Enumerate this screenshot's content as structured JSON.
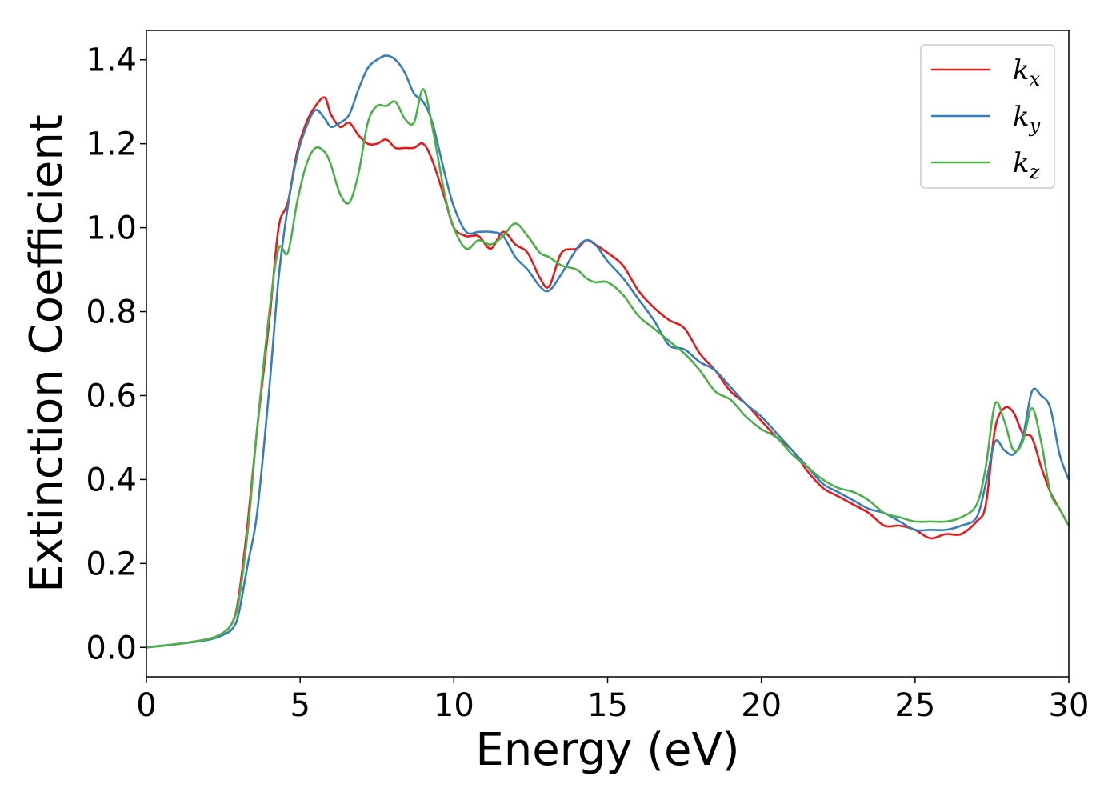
{
  "chart_data": {
    "type": "line",
    "title": "",
    "xlabel": "Energy (eV)",
    "ylabel": "Extinction Coefficient",
    "xlim": [
      0,
      30
    ],
    "ylim": [
      -0.07,
      1.47
    ],
    "xticks": [
      0,
      5,
      10,
      15,
      20,
      25,
      30
    ],
    "xtick_labels": [
      "0",
      "5",
      "10",
      "15",
      "20",
      "25",
      "30"
    ],
    "yticks": [
      0.0,
      0.2,
      0.4,
      0.6,
      0.8,
      1.0,
      1.2,
      1.4
    ],
    "ytick_labels": [
      "0.0",
      "0.2",
      "0.4",
      "0.6",
      "0.8",
      "1.0",
      "1.2",
      "1.4"
    ],
    "grid": false,
    "legend_position": "top-right",
    "series": [
      {
        "name": "k",
        "subscript": "x",
        "color": "#e41a1c",
        "x": [
          0,
          1,
          2,
          2.5,
          2.8,
          3.0,
          3.3,
          3.6,
          4.0,
          4.3,
          4.6,
          4.9,
          5.2,
          5.5,
          5.8,
          6.0,
          6.3,
          6.6,
          6.9,
          7.2,
          7.5,
          7.8,
          8.1,
          8.4,
          8.7,
          9.0,
          9.3,
          9.7,
          10.0,
          10.4,
          10.8,
          11.2,
          11.6,
          12.0,
          12.4,
          12.8,
          13.1,
          13.5,
          14.0,
          14.3,
          14.6,
          15.0,
          15.5,
          16.0,
          16.5,
          17.0,
          17.5,
          18.0,
          18.5,
          19.0,
          19.5,
          20.0,
          20.5,
          21.0,
          21.5,
          22.0,
          22.5,
          23.0,
          23.5,
          24.0,
          24.5,
          25.0,
          25.5,
          26.0,
          26.5,
          27.0,
          27.3,
          27.6,
          27.9,
          28.2,
          28.5,
          28.8,
          29.1,
          29.4,
          29.7,
          30.0
        ],
        "y": [
          0.0,
          0.008,
          0.02,
          0.035,
          0.06,
          0.12,
          0.3,
          0.52,
          0.78,
          1.0,
          1.06,
          1.18,
          1.25,
          1.29,
          1.31,
          1.27,
          1.24,
          1.25,
          1.22,
          1.2,
          1.2,
          1.21,
          1.19,
          1.19,
          1.19,
          1.2,
          1.16,
          1.07,
          1.0,
          0.98,
          0.98,
          0.95,
          0.99,
          0.96,
          0.94,
          0.88,
          0.86,
          0.94,
          0.95,
          0.97,
          0.96,
          0.94,
          0.91,
          0.85,
          0.81,
          0.78,
          0.76,
          0.7,
          0.66,
          0.61,
          0.58,
          0.54,
          0.5,
          0.47,
          0.42,
          0.38,
          0.36,
          0.34,
          0.32,
          0.29,
          0.29,
          0.28,
          0.26,
          0.27,
          0.27,
          0.3,
          0.34,
          0.52,
          0.57,
          0.56,
          0.51,
          0.5,
          0.43,
          0.37,
          0.33,
          0.29
        ]
      },
      {
        "name": "k",
        "subscript": "y",
        "color": "#377eb8",
        "x": [
          0,
          1,
          2,
          2.5,
          2.8,
          3.0,
          3.3,
          3.6,
          4.0,
          4.3,
          4.6,
          4.9,
          5.2,
          5.5,
          5.8,
          6.0,
          6.3,
          6.6,
          6.9,
          7.2,
          7.5,
          7.8,
          8.1,
          8.4,
          8.7,
          9.0,
          9.3,
          9.7,
          10.0,
          10.4,
          10.8,
          11.2,
          11.6,
          12.0,
          12.4,
          12.8,
          13.1,
          13.5,
          14.0,
          14.3,
          14.6,
          15.0,
          15.5,
          16.0,
          16.5,
          17.0,
          17.5,
          18.0,
          18.5,
          19.0,
          19.5,
          20.0,
          20.5,
          21.0,
          21.5,
          22.0,
          22.5,
          23.0,
          23.5,
          24.0,
          24.5,
          25.0,
          25.5,
          26.0,
          26.5,
          27.0,
          27.3,
          27.6,
          27.9,
          28.2,
          28.5,
          28.8,
          29.1,
          29.4,
          29.7,
          30.0
        ],
        "y": [
          0.0,
          0.008,
          0.018,
          0.03,
          0.045,
          0.08,
          0.2,
          0.32,
          0.62,
          0.88,
          1.05,
          1.17,
          1.24,
          1.28,
          1.26,
          1.24,
          1.25,
          1.27,
          1.33,
          1.38,
          1.4,
          1.41,
          1.4,
          1.37,
          1.32,
          1.3,
          1.25,
          1.13,
          1.05,
          0.99,
          0.99,
          0.99,
          0.98,
          0.93,
          0.9,
          0.86,
          0.85,
          0.89,
          0.95,
          0.97,
          0.96,
          0.92,
          0.88,
          0.83,
          0.78,
          0.72,
          0.71,
          0.68,
          0.66,
          0.62,
          0.58,
          0.55,
          0.51,
          0.47,
          0.43,
          0.39,
          0.37,
          0.35,
          0.33,
          0.32,
          0.3,
          0.28,
          0.28,
          0.28,
          0.29,
          0.31,
          0.39,
          0.49,
          0.47,
          0.46,
          0.5,
          0.61,
          0.6,
          0.57,
          0.46,
          0.4
        ]
      },
      {
        "name": "k",
        "subscript": "z",
        "color": "#4daf4a",
        "x": [
          0,
          1,
          2,
          2.5,
          2.8,
          3.0,
          3.3,
          3.6,
          4.0,
          4.3,
          4.6,
          4.9,
          5.2,
          5.5,
          5.8,
          6.0,
          6.3,
          6.6,
          6.9,
          7.2,
          7.5,
          7.8,
          8.1,
          8.4,
          8.7,
          9.0,
          9.3,
          9.7,
          10.0,
          10.4,
          10.8,
          11.2,
          11.6,
          12.0,
          12.4,
          12.8,
          13.1,
          13.5,
          14.0,
          14.3,
          14.6,
          15.0,
          15.5,
          16.0,
          16.5,
          17.0,
          17.5,
          18.0,
          18.5,
          19.0,
          19.5,
          20.0,
          20.5,
          21.0,
          21.5,
          22.0,
          22.5,
          23.0,
          23.5,
          24.0,
          24.5,
          25.0,
          25.5,
          26.0,
          26.5,
          27.0,
          27.3,
          27.6,
          27.9,
          28.2,
          28.5,
          28.8,
          29.1,
          29.4,
          29.7,
          30.0
        ],
        "y": [
          0.0,
          0.008,
          0.02,
          0.035,
          0.06,
          0.11,
          0.28,
          0.52,
          0.8,
          0.95,
          0.94,
          1.06,
          1.15,
          1.19,
          1.18,
          1.15,
          1.08,
          1.06,
          1.13,
          1.25,
          1.29,
          1.29,
          1.3,
          1.26,
          1.25,
          1.33,
          1.24,
          1.08,
          1.0,
          0.95,
          0.97,
          0.96,
          0.98,
          1.01,
          0.98,
          0.94,
          0.93,
          0.91,
          0.9,
          0.88,
          0.87,
          0.87,
          0.84,
          0.79,
          0.76,
          0.73,
          0.7,
          0.66,
          0.61,
          0.59,
          0.55,
          0.52,
          0.5,
          0.46,
          0.43,
          0.4,
          0.38,
          0.37,
          0.35,
          0.32,
          0.31,
          0.3,
          0.3,
          0.3,
          0.31,
          0.34,
          0.43,
          0.58,
          0.54,
          0.47,
          0.49,
          0.57,
          0.49,
          0.37,
          0.33,
          0.29
        ]
      }
    ]
  }
}
